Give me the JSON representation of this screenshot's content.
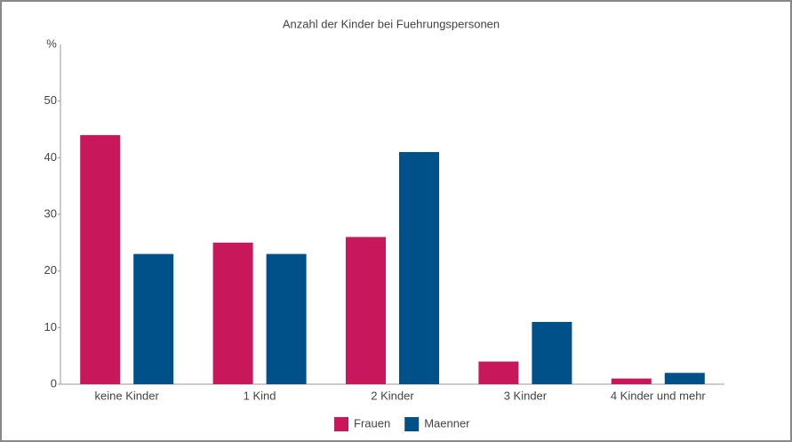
{
  "chart_data": {
    "type": "bar",
    "title": "Anzahl der Kinder bei Fuehrungspersonen",
    "y_label": "%",
    "categories": [
      "keine Kinder",
      "1 Kind",
      "2 Kinder",
      "3 Kinder",
      "4 Kinder und mehr"
    ],
    "series": [
      {
        "name": "Frauen",
        "color": "#c8175b",
        "values": [
          44,
          25,
          26,
          4,
          1
        ]
      },
      {
        "name": "Maenner",
        "color": "#00508a",
        "values": [
          23,
          23,
          41,
          11,
          2
        ]
      }
    ],
    "ylim": [
      0,
      60
    ],
    "yticks": [
      0,
      10,
      20,
      30,
      40,
      50
    ],
    "grid": false,
    "legend": "bottom"
  }
}
